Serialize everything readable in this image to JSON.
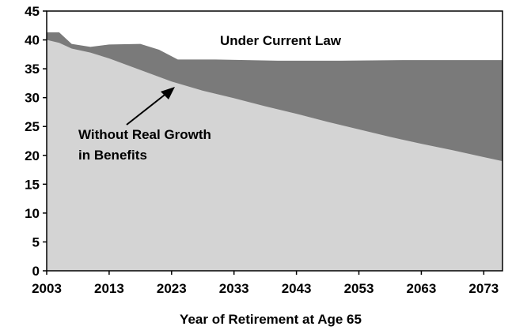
{
  "chart_data": {
    "type": "area",
    "title": "",
    "xlabel": "Year of Retirement at Age 65",
    "ylabel": "",
    "xlim": [
      2003,
      2076
    ],
    "ylim": [
      0,
      45
    ],
    "x_ticks": [
      "2003",
      "2013",
      "2023",
      "2033",
      "2043",
      "2053",
      "2063",
      "2073"
    ],
    "y_ticks": [
      "0",
      "5",
      "10",
      "15",
      "20",
      "25",
      "30",
      "35",
      "40",
      "45"
    ],
    "grid": false,
    "series": [
      {
        "name": "Under Current Law",
        "color": "#7a7a7a",
        "x": [
          2003,
          2005,
          2007,
          2010,
          2013,
          2018,
          2021,
          2024,
          2030,
          2040,
          2050,
          2060,
          2070,
          2076
        ],
        "y": [
          41.3,
          41.3,
          39.3,
          38.8,
          39.2,
          39.3,
          38.3,
          36.6,
          36.6,
          36.4,
          36.4,
          36.5,
          36.5,
          36.5
        ]
      },
      {
        "name": "Without Real Growth in Benefits",
        "color": "#d4d4d4",
        "x": [
          2003,
          2005,
          2007,
          2010,
          2013,
          2018,
          2023,
          2028,
          2033,
          2038,
          2043,
          2048,
          2053,
          2058,
          2063,
          2068,
          2073,
          2076
        ],
        "y": [
          40.0,
          39.5,
          38.5,
          37.8,
          36.8,
          34.8,
          32.8,
          31.2,
          29.9,
          28.5,
          27.2,
          25.8,
          24.5,
          23.2,
          22.0,
          20.9,
          19.7,
          19.0
        ]
      }
    ],
    "annotations": {
      "current_law": "Under Current Law",
      "no_growth_line1": "Without Real Growth",
      "no_growth_line2": "in Benefits"
    }
  }
}
